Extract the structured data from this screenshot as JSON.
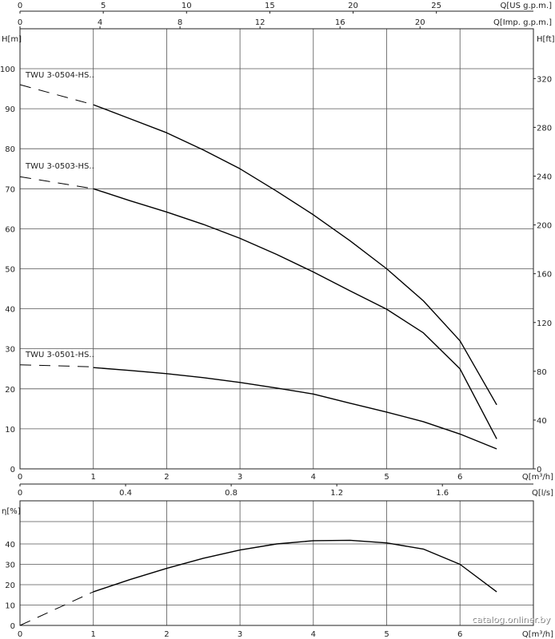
{
  "chart_data": [
    {
      "type": "line",
      "name": "head",
      "axes": {
        "us_gpm": {
          "label": "Q[US g.p.m.]",
          "ticks": [
            0,
            5,
            10,
            15,
            20,
            25
          ]
        },
        "imp_gpm": {
          "label": "Q[Imp. g.p.m.]",
          "ticks": [
            0,
            4,
            8,
            12,
            16,
            20
          ]
        },
        "x": {
          "label": "Q[m³/h]",
          "range": [
            0,
            7
          ],
          "ticks": [
            0,
            1,
            2,
            3,
            4,
            5,
            6
          ]
        },
        "ls": {
          "label": "Q[l/s]",
          "ticks": [
            0,
            0.4,
            0.8,
            1.2,
            1.6
          ]
        },
        "y_left": {
          "label": "H[m]",
          "range": [
            0,
            108
          ],
          "ticks": [
            0,
            10,
            20,
            30,
            40,
            50,
            60,
            70,
            80,
            90,
            100
          ]
        },
        "y_right": {
          "label": "H[ft]",
          "ticks": [
            0,
            40,
            80,
            120,
            160,
            200,
            240,
            280,
            320
          ]
        }
      },
      "series": [
        {
          "name": "TWU 3-0504-HS..",
          "dashed": [
            [
              0,
              96
            ],
            [
              1.0,
              91
            ]
          ],
          "x": [
            1.0,
            1.5,
            2.0,
            2.5,
            3.0,
            3.5,
            4.0,
            4.5,
            5.0,
            5.5,
            6.0,
            6.5
          ],
          "values": [
            91,
            87.5,
            84,
            79.7,
            75,
            69.4,
            63.5,
            57,
            50,
            42,
            32,
            16
          ]
        },
        {
          "name": "TWU 3-0503-HS..",
          "dashed": [
            [
              0,
              73
            ],
            [
              1.0,
              70
            ]
          ],
          "x": [
            1.0,
            1.5,
            2.0,
            2.5,
            3.0,
            3.5,
            4.0,
            4.5,
            5.0,
            5.5,
            6.0,
            6.5
          ],
          "values": [
            70,
            67,
            64.2,
            61.1,
            57.6,
            53.6,
            49.2,
            44.5,
            39.9,
            34,
            25,
            7.5
          ]
        },
        {
          "name": "TWU 3-0501-HS..",
          "dashed": [
            [
              0,
              26
            ],
            [
              1.0,
              25.5
            ]
          ],
          "x": [
            1.0,
            1.5,
            2.0,
            2.5,
            3.0,
            3.5,
            4.0,
            4.5,
            5.0,
            5.5,
            6.0,
            6.5
          ],
          "values": [
            25.3,
            24.6,
            23.8,
            22.8,
            21.6,
            20.2,
            18.7,
            16.4,
            14.2,
            11.8,
            8.7,
            5
          ]
        }
      ]
    },
    {
      "type": "line",
      "name": "efficiency",
      "axes": {
        "x": {
          "label": "Q[m³/h]",
          "range": [
            0,
            7
          ],
          "ticks": [
            0,
            1,
            2,
            3,
            4,
            5,
            6
          ]
        },
        "y": {
          "label": "η[%]",
          "range": [
            0,
            48
          ],
          "ticks": [
            0,
            10,
            20,
            30,
            40
          ]
        }
      },
      "series": [
        {
          "name": "",
          "dashed": [
            [
              0,
              0
            ],
            [
              1.0,
              16.5
            ]
          ],
          "x": [
            1.0,
            1.5,
            2.0,
            2.5,
            3.0,
            3.5,
            4.0,
            4.5,
            5.0,
            5.5,
            6.0,
            6.5
          ],
          "values": [
            16.5,
            22.5,
            28,
            33,
            37,
            40,
            41.6,
            41.8,
            40.5,
            37.5,
            30,
            16.5
          ]
        }
      ]
    }
  ],
  "watermark": "catalog.onliner.by"
}
